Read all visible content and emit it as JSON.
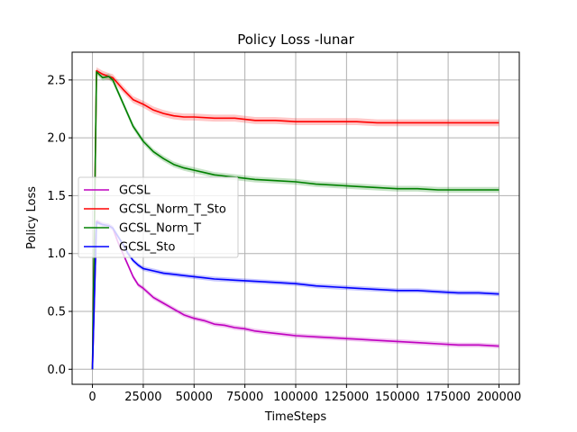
{
  "chart_data": {
    "type": "line",
    "title": "Policy Loss -lunar",
    "xlabel": "TimeSteps",
    "ylabel": "Policy Loss",
    "xlim": [
      -10000,
      210000
    ],
    "ylim": [
      -0.13,
      2.74
    ],
    "xticks": [
      0,
      25000,
      50000,
      75000,
      100000,
      125000,
      150000,
      175000,
      200000
    ],
    "yticks": [
      0.0,
      0.5,
      1.0,
      1.5,
      2.0,
      2.5
    ],
    "xtick_labels": [
      "0",
      "25000",
      "50000",
      "75000",
      "100000",
      "125000",
      "150000",
      "175000",
      "200000"
    ],
    "ytick_labels": [
      "0.0",
      "0.5",
      "1.0",
      "1.5",
      "2.0",
      "2.5"
    ],
    "grid": true,
    "legend_position": "center-left",
    "series": [
      {
        "name": "GCSL",
        "color": "#bf00bf",
        "x": [
          0,
          2000,
          5000,
          8000,
          10000,
          12500,
          15000,
          17500,
          20000,
          22500,
          25000,
          30000,
          35000,
          40000,
          45000,
          50000,
          55000,
          60000,
          65000,
          70000,
          75000,
          80000,
          85000,
          90000,
          95000,
          100000,
          110000,
          120000,
          130000,
          140000,
          150000,
          160000,
          170000,
          180000,
          190000,
          200000
        ],
        "y": [
          0.0,
          1.28,
          1.25,
          1.24,
          1.22,
          1.1,
          1.0,
          0.9,
          0.8,
          0.73,
          0.7,
          0.62,
          0.57,
          0.52,
          0.47,
          0.44,
          0.42,
          0.39,
          0.38,
          0.36,
          0.35,
          0.33,
          0.32,
          0.31,
          0.3,
          0.29,
          0.28,
          0.27,
          0.26,
          0.25,
          0.24,
          0.23,
          0.22,
          0.21,
          0.21,
          0.2
        ],
        "band": 0.02
      },
      {
        "name": "GCSL_Norm_T_Sto",
        "color": "#ff0000",
        "x": [
          0,
          2000,
          5000,
          8000,
          10000,
          15000,
          20000,
          25000,
          30000,
          35000,
          40000,
          45000,
          50000,
          60000,
          70000,
          80000,
          90000,
          100000,
          110000,
          120000,
          130000,
          140000,
          150000,
          160000,
          170000,
          180000,
          190000,
          200000
        ],
        "y": [
          0.0,
          2.58,
          2.55,
          2.53,
          2.52,
          2.42,
          2.33,
          2.29,
          2.24,
          2.21,
          2.19,
          2.18,
          2.18,
          2.17,
          2.17,
          2.15,
          2.15,
          2.14,
          2.14,
          2.14,
          2.14,
          2.13,
          2.13,
          2.13,
          2.13,
          2.13,
          2.13,
          2.13
        ],
        "band": 0.03
      },
      {
        "name": "GCSL_Norm_T",
        "color": "#008000",
        "x": [
          0,
          2000,
          5000,
          8000,
          10000,
          15000,
          20000,
          25000,
          30000,
          35000,
          40000,
          45000,
          50000,
          55000,
          60000,
          70000,
          80000,
          90000,
          100000,
          110000,
          120000,
          130000,
          140000,
          150000,
          160000,
          170000,
          180000,
          190000,
          200000
        ],
        "y": [
          0.0,
          2.57,
          2.52,
          2.53,
          2.5,
          2.3,
          2.1,
          1.97,
          1.88,
          1.82,
          1.77,
          1.74,
          1.72,
          1.7,
          1.68,
          1.66,
          1.64,
          1.63,
          1.62,
          1.6,
          1.59,
          1.58,
          1.57,
          1.56,
          1.56,
          1.55,
          1.55,
          1.55,
          1.55
        ],
        "band": 0.025
      },
      {
        "name": "GCSL_Sto",
        "color": "#0000ff",
        "x": [
          0,
          2000,
          5000,
          8000,
          10000,
          12500,
          15000,
          17500,
          20000,
          22500,
          25000,
          30000,
          35000,
          40000,
          45000,
          50000,
          55000,
          60000,
          70000,
          80000,
          90000,
          100000,
          110000,
          120000,
          130000,
          140000,
          150000,
          160000,
          170000,
          180000,
          190000,
          200000
        ],
        "y": [
          0.0,
          1.27,
          1.25,
          1.24,
          1.22,
          1.15,
          1.08,
          1.0,
          0.94,
          0.9,
          0.87,
          0.85,
          0.83,
          0.82,
          0.81,
          0.8,
          0.79,
          0.78,
          0.77,
          0.76,
          0.75,
          0.74,
          0.72,
          0.71,
          0.7,
          0.69,
          0.68,
          0.68,
          0.67,
          0.66,
          0.66,
          0.65
        ],
        "band": 0.02
      }
    ]
  }
}
